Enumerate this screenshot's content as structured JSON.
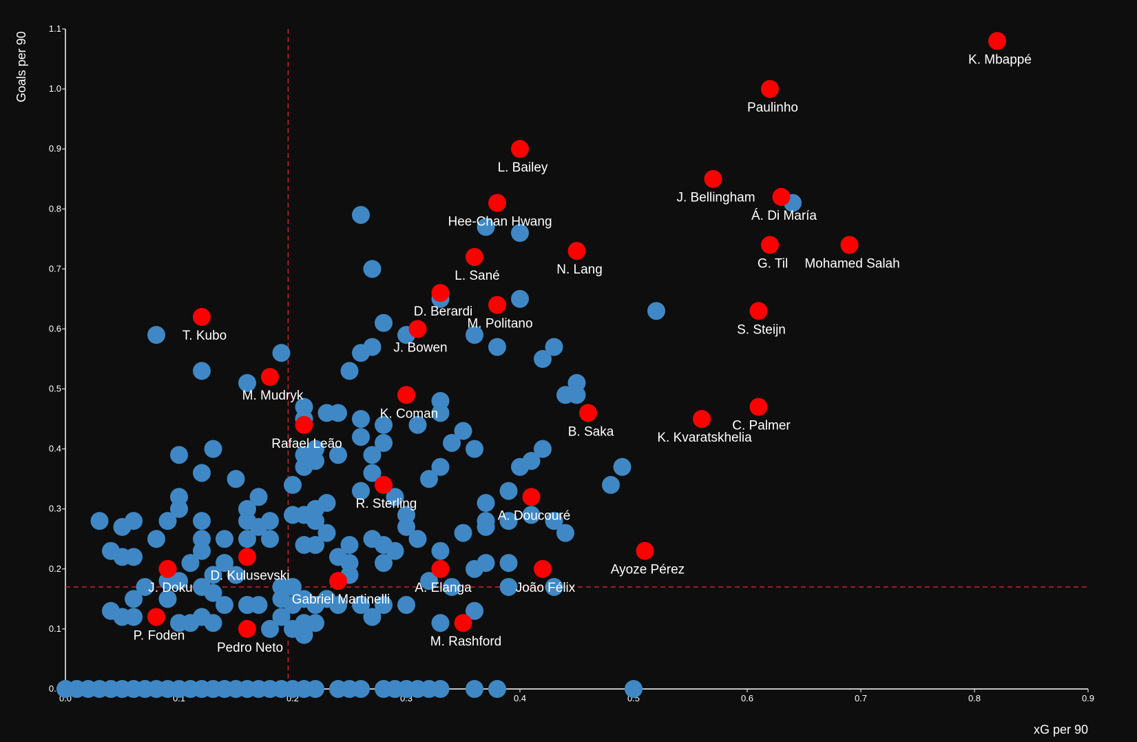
{
  "colors": {
    "background": "#0e0e0e",
    "other_players": "#3f88c5",
    "highlighted_players": "#ff0000",
    "reference_lines": "#c62828",
    "text": "#ffffff"
  },
  "chart_data": {
    "type": "scatter",
    "xlabel": "xG per 90",
    "ylabel": "Goals per 90",
    "xlim": [
      0,
      0.9
    ],
    "ylim": [
      0,
      1.1
    ],
    "grid": false,
    "x_ticks": [
      "0.0",
      "0.1",
      "0.2",
      "0.3",
      "0.4",
      "0.5",
      "0.6",
      "0.7",
      "0.8",
      "0.9"
    ],
    "y_ticks": [
      "0.0",
      "0.1",
      "0.2",
      "0.3",
      "0.4",
      "0.5",
      "0.6",
      "0.7",
      "0.8",
      "0.9",
      "1.0",
      "1.1"
    ],
    "reference_lines": {
      "x": 0.196,
      "y": 0.17
    },
    "labeled_players": [
      {
        "name": "K. Mbappé",
        "x": 0.82,
        "y": 1.08
      },
      {
        "name": "Paulinho",
        "x": 0.62,
        "y": 1.0
      },
      {
        "name": "L. Bailey",
        "x": 0.4,
        "y": 0.9
      },
      {
        "name": "J. Bellingham",
        "x": 0.57,
        "y": 0.85
      },
      {
        "name": "Á. Di María",
        "x": 0.63,
        "y": 0.82
      },
      {
        "name": "Hee-Chan Hwang",
        "x": 0.38,
        "y": 0.81
      },
      {
        "name": "G. Til",
        "x": 0.62,
        "y": 0.74
      },
      {
        "name": "Mohamed Salah",
        "x": 0.69,
        "y": 0.74
      },
      {
        "name": "N. Lang",
        "x": 0.45,
        "y": 0.73
      },
      {
        "name": "L. Sané",
        "x": 0.36,
        "y": 0.72
      },
      {
        "name": "D. Berardi",
        "x": 0.33,
        "y": 0.66
      },
      {
        "name": "M. Politano",
        "x": 0.38,
        "y": 0.64
      },
      {
        "name": "S. Steijn",
        "x": 0.61,
        "y": 0.63
      },
      {
        "name": "T. Kubo",
        "x": 0.12,
        "y": 0.62
      },
      {
        "name": "J. Bowen",
        "x": 0.31,
        "y": 0.6
      },
      {
        "name": "M. Mudryk",
        "x": 0.18,
        "y": 0.52
      },
      {
        "name": "K. Coman",
        "x": 0.3,
        "y": 0.49
      },
      {
        "name": "C. Palmer",
        "x": 0.61,
        "y": 0.47
      },
      {
        "name": "B. Saka",
        "x": 0.46,
        "y": 0.46
      },
      {
        "name": "K. Kvaratskhelia",
        "x": 0.56,
        "y": 0.45
      },
      {
        "name": "Rafael Leão",
        "x": 0.21,
        "y": 0.44
      },
      {
        "name": "R. Sterling",
        "x": 0.28,
        "y": 0.34
      },
      {
        "name": "A. Doucouré",
        "x": 0.41,
        "y": 0.32
      },
      {
        "name": "Ayoze Pérez",
        "x": 0.51,
        "y": 0.23
      },
      {
        "name": "D. Kulusevski",
        "x": 0.16,
        "y": 0.22
      },
      {
        "name": "J. Doku",
        "x": 0.09,
        "y": 0.2
      },
      {
        "name": "A. Elanga",
        "x": 0.33,
        "y": 0.2
      },
      {
        "name": "João Félix",
        "x": 0.42,
        "y": 0.2
      },
      {
        "name": "Gabriel Martinelli",
        "x": 0.24,
        "y": 0.18
      },
      {
        "name": "P. Foden",
        "x": 0.08,
        "y": 0.12
      },
      {
        "name": "M. Rashford",
        "x": 0.35,
        "y": 0.11
      },
      {
        "name": "Pedro Neto",
        "x": 0.16,
        "y": 0.1
      }
    ],
    "other_players": [
      [
        0.26,
        0.79
      ],
      [
        0.64,
        0.81
      ],
      [
        0.37,
        0.77
      ],
      [
        0.4,
        0.76
      ],
      [
        0.27,
        0.7
      ],
      [
        0.33,
        0.65
      ],
      [
        0.4,
        0.65
      ],
      [
        0.52,
        0.63
      ],
      [
        0.08,
        0.59
      ],
      [
        0.28,
        0.61
      ],
      [
        0.3,
        0.59
      ],
      [
        0.36,
        0.59
      ],
      [
        0.26,
        0.56
      ],
      [
        0.27,
        0.57
      ],
      [
        0.19,
        0.56
      ],
      [
        0.38,
        0.57
      ],
      [
        0.43,
        0.57
      ],
      [
        0.42,
        0.55
      ],
      [
        0.12,
        0.53
      ],
      [
        0.25,
        0.53
      ],
      [
        0.16,
        0.51
      ],
      [
        0.45,
        0.51
      ],
      [
        0.44,
        0.49
      ],
      [
        0.45,
        0.49
      ],
      [
        0.21,
        0.47
      ],
      [
        0.23,
        0.46
      ],
      [
        0.24,
        0.46
      ],
      [
        0.21,
        0.45
      ],
      [
        0.33,
        0.48
      ],
      [
        0.33,
        0.46
      ],
      [
        0.31,
        0.44
      ],
      [
        0.28,
        0.44
      ],
      [
        0.26,
        0.45
      ],
      [
        0.26,
        0.42
      ],
      [
        0.28,
        0.41
      ],
      [
        0.34,
        0.41
      ],
      [
        0.35,
        0.43
      ],
      [
        0.36,
        0.4
      ],
      [
        0.42,
        0.4
      ],
      [
        0.1,
        0.39
      ],
      [
        0.13,
        0.4
      ],
      [
        0.21,
        0.39
      ],
      [
        0.22,
        0.38
      ],
      [
        0.22,
        0.4
      ],
      [
        0.24,
        0.39
      ],
      [
        0.27,
        0.39
      ],
      [
        0.41,
        0.38
      ],
      [
        0.4,
        0.37
      ],
      [
        0.33,
        0.37
      ],
      [
        0.12,
        0.36
      ],
      [
        0.15,
        0.35
      ],
      [
        0.27,
        0.36
      ],
      [
        0.32,
        0.35
      ],
      [
        0.2,
        0.34
      ],
      [
        0.21,
        0.37
      ],
      [
        0.48,
        0.34
      ],
      [
        0.49,
        0.37
      ],
      [
        0.26,
        0.33
      ],
      [
        0.39,
        0.33
      ],
      [
        0.1,
        0.32
      ],
      [
        0.17,
        0.32
      ],
      [
        0.29,
        0.32
      ],
      [
        0.1,
        0.3
      ],
      [
        0.16,
        0.3
      ],
      [
        0.22,
        0.3
      ],
      [
        0.23,
        0.31
      ],
      [
        0.37,
        0.31
      ],
      [
        0.2,
        0.29
      ],
      [
        0.21,
        0.29
      ],
      [
        0.3,
        0.29
      ],
      [
        0.03,
        0.28
      ],
      [
        0.06,
        0.28
      ],
      [
        0.09,
        0.28
      ],
      [
        0.12,
        0.28
      ],
      [
        0.16,
        0.28
      ],
      [
        0.17,
        0.27
      ],
      [
        0.18,
        0.28
      ],
      [
        0.22,
        0.28
      ],
      [
        0.3,
        0.27
      ],
      [
        0.37,
        0.28
      ],
      [
        0.39,
        0.28
      ],
      [
        0.41,
        0.29
      ],
      [
        0.43,
        0.28
      ],
      [
        0.05,
        0.27
      ],
      [
        0.37,
        0.27
      ],
      [
        0.08,
        0.25
      ],
      [
        0.12,
        0.25
      ],
      [
        0.14,
        0.25
      ],
      [
        0.16,
        0.25
      ],
      [
        0.18,
        0.25
      ],
      [
        0.22,
        0.24
      ],
      [
        0.23,
        0.26
      ],
      [
        0.27,
        0.25
      ],
      [
        0.31,
        0.25
      ],
      [
        0.35,
        0.26
      ],
      [
        0.44,
        0.26
      ],
      [
        0.04,
        0.23
      ],
      [
        0.05,
        0.22
      ],
      [
        0.06,
        0.22
      ],
      [
        0.12,
        0.23
      ],
      [
        0.21,
        0.24
      ],
      [
        0.25,
        0.24
      ],
      [
        0.28,
        0.24
      ],
      [
        0.29,
        0.23
      ],
      [
        0.33,
        0.23
      ],
      [
        0.11,
        0.21
      ],
      [
        0.14,
        0.21
      ],
      [
        0.24,
        0.22
      ],
      [
        0.25,
        0.21
      ],
      [
        0.28,
        0.21
      ],
      [
        0.36,
        0.2
      ],
      [
        0.37,
        0.21
      ],
      [
        0.39,
        0.21
      ],
      [
        0.07,
        0.17
      ],
      [
        0.09,
        0.18
      ],
      [
        0.1,
        0.18
      ],
      [
        0.12,
        0.17
      ],
      [
        0.13,
        0.19
      ],
      [
        0.15,
        0.19
      ],
      [
        0.19,
        0.17
      ],
      [
        0.2,
        0.17
      ],
      [
        0.25,
        0.19
      ],
      [
        0.32,
        0.18
      ],
      [
        0.34,
        0.17
      ],
      [
        0.39,
        0.17
      ],
      [
        0.43,
        0.17
      ],
      [
        0.06,
        0.15
      ],
      [
        0.09,
        0.15
      ],
      [
        0.13,
        0.16
      ],
      [
        0.14,
        0.14
      ],
      [
        0.16,
        0.14
      ],
      [
        0.17,
        0.14
      ],
      [
        0.19,
        0.15
      ],
      [
        0.2,
        0.14
      ],
      [
        0.21,
        0.15
      ],
      [
        0.22,
        0.14
      ],
      [
        0.23,
        0.15
      ],
      [
        0.24,
        0.14
      ],
      [
        0.26,
        0.14
      ],
      [
        0.28,
        0.14
      ],
      [
        0.3,
        0.14
      ],
      [
        0.04,
        0.13
      ],
      [
        0.05,
        0.12
      ],
      [
        0.06,
        0.12
      ],
      [
        0.11,
        0.11
      ],
      [
        0.13,
        0.11
      ],
      [
        0.16,
        0.14
      ],
      [
        0.18,
        0.1
      ],
      [
        0.2,
        0.1
      ],
      [
        0.21,
        0.11
      ],
      [
        0.22,
        0.11
      ],
      [
        0.27,
        0.12
      ],
      [
        0.33,
        0.11
      ],
      [
        0.36,
        0.13
      ],
      [
        0.1,
        0.11
      ],
      [
        0.12,
        0.12
      ],
      [
        0.21,
        0.09
      ],
      [
        0.19,
        0.12
      ],
      [
        0.0,
        0.0
      ],
      [
        0.01,
        0.0
      ],
      [
        0.02,
        0.0
      ],
      [
        0.03,
        0.0
      ],
      [
        0.04,
        0.0
      ],
      [
        0.05,
        0.0
      ],
      [
        0.06,
        0.0
      ],
      [
        0.07,
        0.0
      ],
      [
        0.08,
        0.0
      ],
      [
        0.09,
        0.0
      ],
      [
        0.1,
        0.0
      ],
      [
        0.11,
        0.0
      ],
      [
        0.12,
        0.0
      ],
      [
        0.13,
        0.0
      ],
      [
        0.14,
        0.0
      ],
      [
        0.15,
        0.0
      ],
      [
        0.16,
        0.0
      ],
      [
        0.17,
        0.0
      ],
      [
        0.18,
        0.0
      ],
      [
        0.19,
        0.0
      ],
      [
        0.2,
        0.0
      ],
      [
        0.21,
        0.0
      ],
      [
        0.22,
        0.0
      ],
      [
        0.24,
        0.0
      ],
      [
        0.25,
        0.0
      ],
      [
        0.26,
        0.0
      ],
      [
        0.28,
        0.0
      ],
      [
        0.29,
        0.0
      ],
      [
        0.3,
        0.0
      ],
      [
        0.31,
        0.0
      ],
      [
        0.32,
        0.0
      ],
      [
        0.33,
        0.0
      ],
      [
        0.36,
        0.0
      ],
      [
        0.38,
        0.0
      ],
      [
        0.5,
        0.0
      ]
    ]
  }
}
